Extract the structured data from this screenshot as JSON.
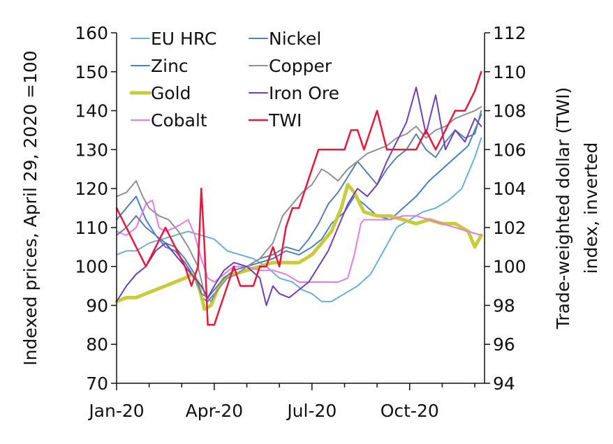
{
  "chart_data": {
    "type": "line",
    "xlabel": "",
    "ylabel": "Indexed prices, April 29, 2020 =100",
    "y2label_line1": "Trade-weighted dollar (TWI)",
    "y2label_line2": "index, inverted",
    "x_tick_labels": [
      "Jan-20",
      "Apr-20",
      "Jul-20",
      "Oct-20"
    ],
    "x_ticks": [
      0,
      3,
      6,
      9
    ],
    "x_minor_ticks": [
      1,
      2,
      4,
      5,
      7,
      8,
      10,
      11
    ],
    "xlim": [
      0,
      11.3
    ],
    "ylim": [
      70,
      160
    ],
    "y_ticks": [
      70,
      80,
      90,
      100,
      110,
      120,
      130,
      140,
      150,
      160
    ],
    "y2lim": [
      94,
      112
    ],
    "y2_inverted_on_chart": false,
    "y2_ticks": [
      94,
      96,
      98,
      100,
      102,
      104,
      106,
      108,
      110,
      112
    ],
    "grid": false,
    "legend_position": "top-left",
    "series": [
      {
        "name": "EU HRC",
        "color": "#6baed6",
        "width": 2,
        "axis": "left",
        "x": [
          0,
          0.3,
          0.6,
          1.0,
          1.4,
          1.8,
          2.2,
          2.6,
          3.0,
          3.4,
          3.8,
          4.2,
          4.6,
          5.0,
          5.4,
          5.7,
          6.0,
          6.3,
          6.6,
          7.0,
          7.4,
          7.8,
          8.2,
          8.6,
          9.0,
          9.4,
          9.8,
          10.2,
          10.6,
          11.0,
          11.2
        ],
        "y": [
          103,
          104,
          104,
          106,
          107,
          108,
          109,
          108,
          107,
          104,
          103,
          102,
          100,
          97,
          96,
          94,
          93,
          91,
          91,
          93,
          95,
          98,
          104,
          110,
          112,
          114,
          115,
          117,
          120,
          128,
          133
        ]
      },
      {
        "name": "Zinc",
        "color": "#4a7fc4",
        "width": 2,
        "axis": "left",
        "x": [
          0,
          0.3,
          0.6,
          0.9,
          1.2,
          1.5,
          1.8,
          2.1,
          2.4,
          2.6,
          2.8,
          3.0,
          3.3,
          3.6,
          4.0,
          4.4,
          4.8,
          5.2,
          5.6,
          6.0,
          6.3,
          6.6,
          7.0,
          7.3,
          7.6,
          8.0,
          8.4,
          8.8,
          9.2,
          9.6,
          10.0,
          10.4,
          10.8,
          11.2
        ],
        "y": [
          112,
          115,
          118,
          112,
          108,
          105,
          104,
          101,
          97,
          92,
          91,
          93,
          96,
          99,
          100,
          101,
          102,
          104,
          103,
          105,
          107,
          111,
          114,
          118,
          116,
          113,
          112,
          115,
          118,
          122,
          125,
          128,
          131,
          139
        ]
      },
      {
        "name": "Gold",
        "color": "#c9cc3a",
        "width": 5,
        "axis": "left",
        "x": [
          0,
          0.3,
          0.6,
          0.9,
          1.2,
          1.5,
          1.8,
          2.1,
          2.3,
          2.5,
          2.7,
          2.9,
          3.1,
          3.3,
          3.6,
          4.0,
          4.4,
          4.8,
          5.2,
          5.6,
          6.0,
          6.3,
          6.6,
          6.9,
          7.1,
          7.3,
          7.6,
          8.0,
          8.4,
          8.8,
          9.2,
          9.6,
          10.0,
          10.4,
          10.8,
          11.0,
          11.2
        ],
        "y": [
          91,
          92,
          92,
          93,
          94,
          95,
          96,
          97,
          98,
          96,
          89,
          90,
          94,
          97,
          98,
          99,
          100,
          101,
          101,
          101,
          103,
          106,
          109,
          115,
          121,
          119,
          114,
          113,
          113,
          112,
          111,
          112,
          111,
          111,
          109,
          105,
          108
        ]
      },
      {
        "name": "Cobalt",
        "color": "#e57be6",
        "width": 2,
        "axis": "left",
        "x": [
          0,
          0.3,
          0.6,
          0.9,
          1.1,
          1.3,
          1.5,
          1.8,
          2.0,
          2.2,
          2.4,
          2.6,
          2.8,
          3.0,
          3.3,
          3.6,
          4.0,
          4.4,
          4.8,
          5.2,
          5.6,
          5.9,
          6.2,
          6.5,
          6.8,
          7.1,
          7.3,
          7.5,
          7.6,
          8.0,
          8.4,
          8.8,
          9.2,
          9.6,
          10.0,
          10.4,
          10.8,
          11.2
        ],
        "y": [
          109,
          108,
          110,
          116,
          117,
          110,
          109,
          110,
          111,
          112,
          108,
          102,
          97,
          96,
          98,
          100,
          100,
          99,
          99,
          98,
          96,
          96,
          96,
          96,
          96,
          97,
          103,
          111,
          112,
          112,
          112,
          113,
          113,
          112,
          111,
          110,
          109,
          108
        ]
      },
      {
        "name": "Nickel",
        "color": "#5a7fa9",
        "width": 2,
        "axis": "left",
        "x": [
          0,
          0.3,
          0.6,
          0.9,
          1.2,
          1.5,
          1.8,
          2.1,
          2.4,
          2.6,
          2.8,
          3.0,
          3.3,
          3.6,
          4.0,
          4.4,
          4.8,
          5.2,
          5.6,
          5.9,
          6.2,
          6.5,
          6.8,
          7.1,
          7.4,
          7.7,
          8.0,
          8.3,
          8.6,
          8.9,
          9.2,
          9.5,
          9.8,
          10.1,
          10.4,
          10.7,
          11.0,
          11.2
        ],
        "y": [
          108,
          110,
          113,
          110,
          108,
          106,
          105,
          102,
          98,
          93,
          92,
          94,
          97,
          99,
          100,
          102,
          103,
          105,
          104,
          107,
          111,
          116,
          119,
          123,
          127,
          124,
          121,
          125,
          128,
          130,
          134,
          130,
          128,
          132,
          135,
          133,
          134,
          140
        ]
      },
      {
        "name": "Copper",
        "color": "#909090",
        "width": 2,
        "axis": "left",
        "x": [
          0,
          0.3,
          0.6,
          0.8,
          1.0,
          1.3,
          1.6,
          1.9,
          2.2,
          2.5,
          2.7,
          2.9,
          3.1,
          3.4,
          3.7,
          4.0,
          4.4,
          4.8,
          5.1,
          5.4,
          5.7,
          6.0,
          6.3,
          6.5,
          6.8,
          7.1,
          7.4,
          7.7,
          8.0,
          8.3,
          8.6,
          8.9,
          9.2,
          9.5,
          9.8,
          10.1,
          10.4,
          10.7,
          11.0,
          11.2
        ],
        "y": [
          118,
          119,
          122,
          118,
          115,
          113,
          112,
          109,
          105,
          100,
          93,
          91,
          94,
          97,
          98,
          100,
          102,
          106,
          113,
          116,
          119,
          121,
          125,
          124,
          122,
          125,
          127,
          129,
          130,
          131,
          133,
          134,
          136,
          133,
          135,
          136,
          138,
          139,
          140,
          141
        ]
      },
      {
        "name": "Iron Ore",
        "color": "#6f3fb8",
        "width": 2,
        "axis": "left",
        "x": [
          0,
          0.3,
          0.6,
          0.9,
          1.2,
          1.5,
          1.8,
          2.1,
          2.4,
          2.6,
          2.8,
          3.0,
          3.3,
          3.6,
          4.0,
          4.4,
          4.6,
          4.8,
          5.0,
          5.3,
          5.6,
          5.9,
          6.2,
          6.5,
          6.8,
          7.1,
          7.4,
          7.7,
          8.0,
          8.3,
          8.6,
          8.9,
          9.2,
          9.5,
          9.8,
          10.1,
          10.4,
          10.7,
          11.0,
          11.2
        ],
        "y": [
          91,
          95,
          98,
          100,
          104,
          106,
          103,
          100,
          97,
          95,
          92,
          95,
          99,
          101,
          100,
          97,
          90,
          95,
          93,
          92,
          94,
          96,
          100,
          104,
          110,
          116,
          120,
          118,
          121,
          127,
          132,
          137,
          146,
          134,
          144,
          130,
          135,
          132,
          138,
          136
        ]
      },
      {
        "name": "TWI",
        "color": "#e8173b",
        "width": 2.5,
        "axis": "right",
        "x": [
          0,
          0.3,
          0.6,
          0.9,
          1.2,
          1.5,
          1.8,
          2.1,
          2.3,
          2.5,
          2.6,
          2.7,
          2.8,
          2.9,
          3.0,
          3.2,
          3.4,
          3.6,
          3.8,
          4.0,
          4.2,
          4.4,
          4.6,
          4.8,
          5.0,
          5.2,
          5.4,
          5.6,
          5.8,
          6.0,
          6.2,
          6.4,
          6.6,
          6.8,
          7.0,
          7.2,
          7.4,
          7.6,
          7.8,
          8.0,
          8.3,
          8.6,
          8.9,
          9.2,
          9.5,
          9.8,
          10.1,
          10.4,
          10.7,
          11.0,
          11.2
        ],
        "y": [
          103,
          102,
          101,
          100,
          101,
          102,
          101,
          100,
          99,
          100,
          104,
          101,
          97,
          97,
          97,
          98,
          99,
          100,
          99,
          99,
          99,
          100,
          100,
          101,
          100,
          102,
          103,
          103,
          104,
          105,
          106,
          106,
          106,
          106,
          106,
          107,
          107,
          106,
          107,
          108,
          106,
          106,
          106,
          106,
          107,
          106,
          107,
          108,
          108,
          109,
          110
        ]
      }
    ]
  }
}
